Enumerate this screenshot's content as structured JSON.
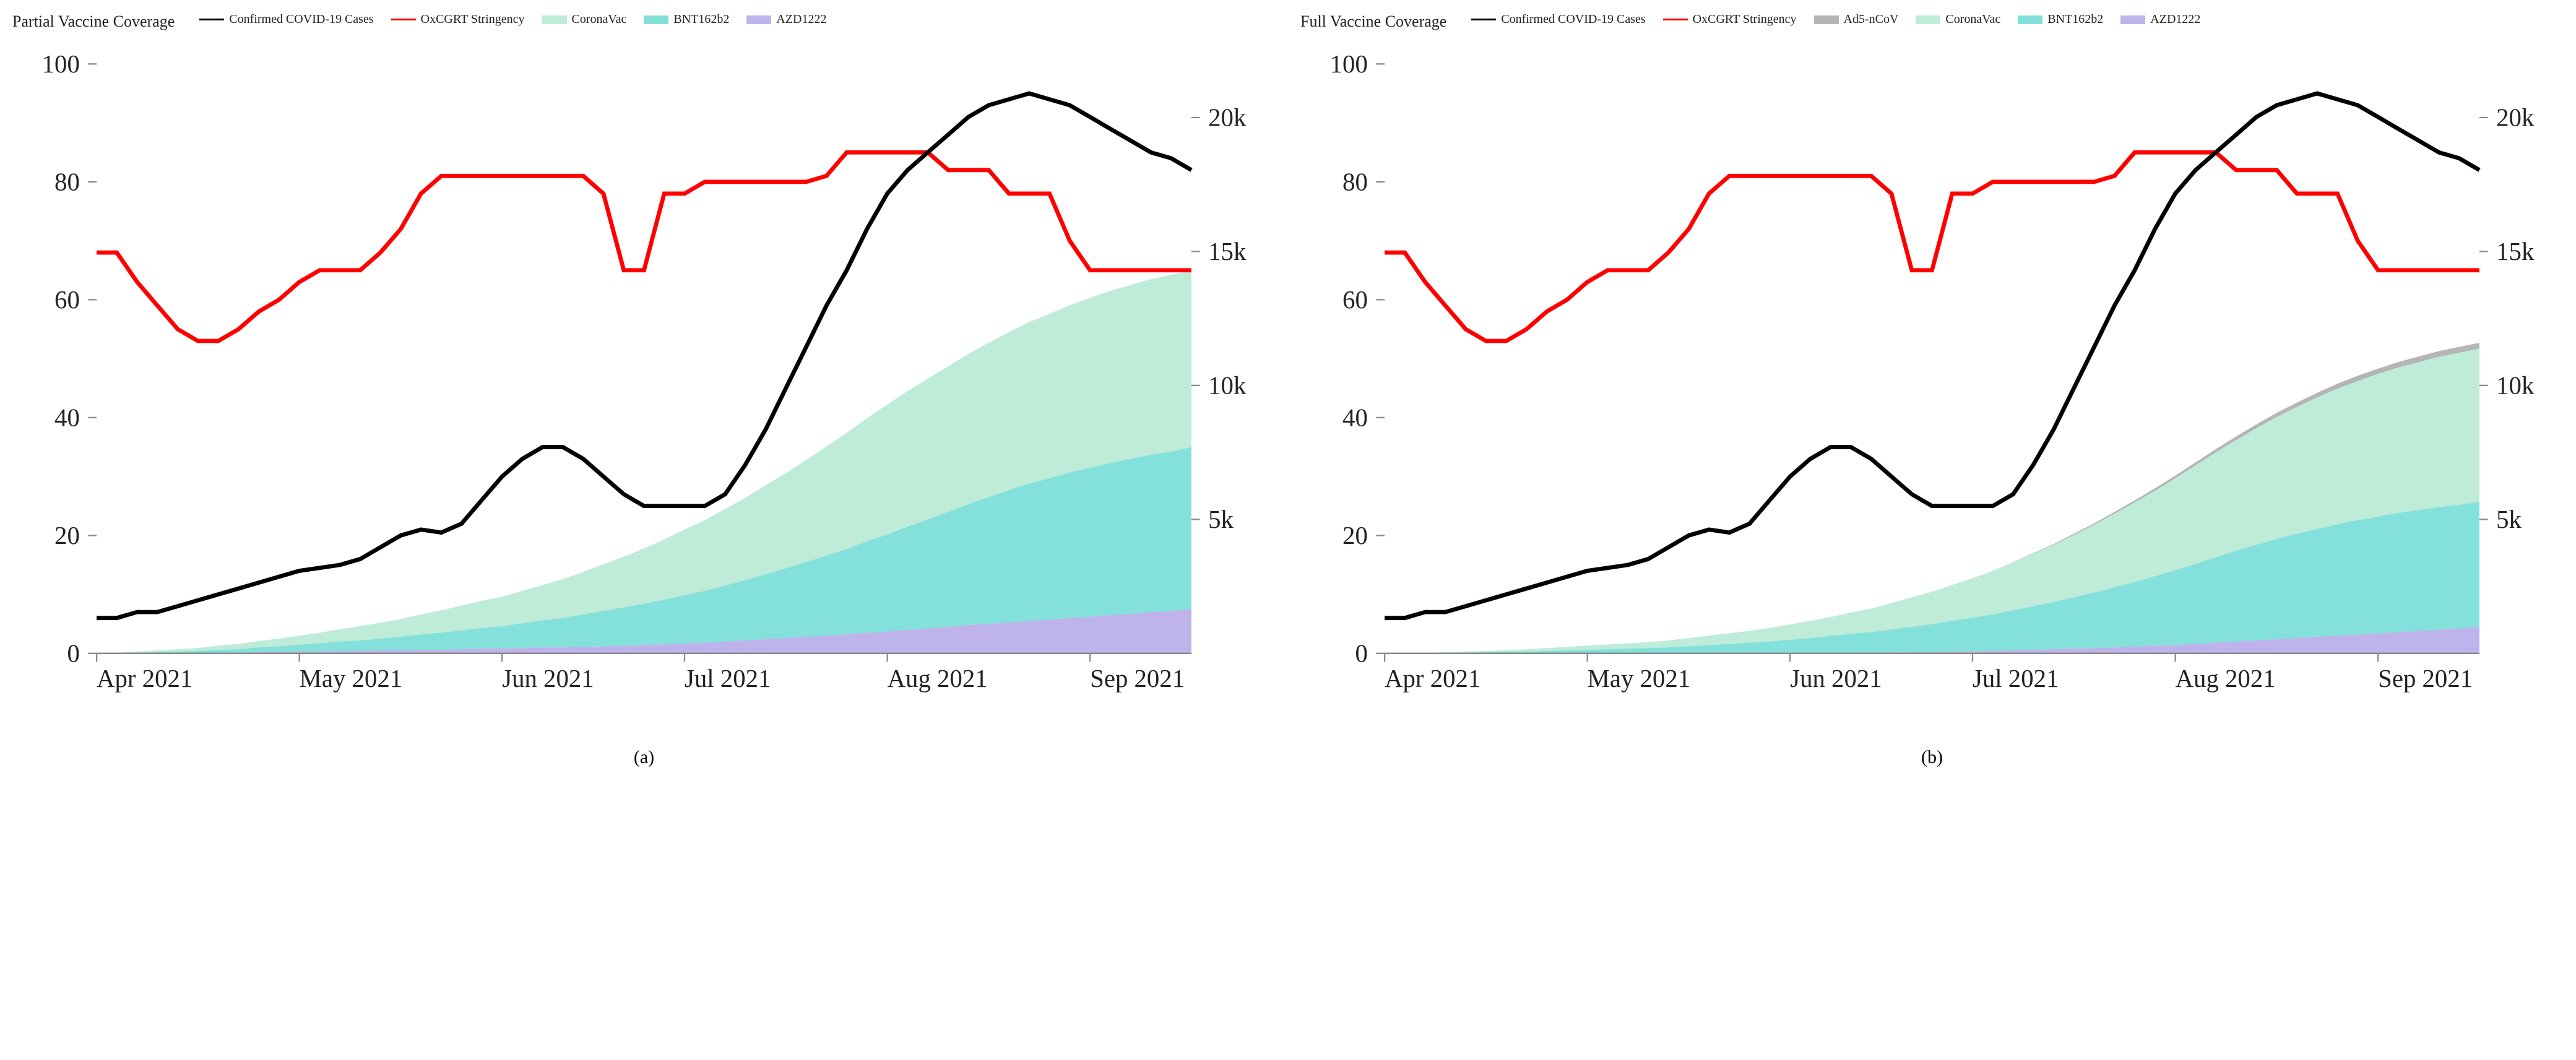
{
  "global": {
    "font_family": "Times New Roman",
    "background_color": "#ffffff",
    "text_color": "#222222",
    "axis_line_color": "#888888",
    "tick_color": "#444444"
  },
  "x_axis": {
    "labels": [
      "Apr 2021",
      "May 2021",
      "Jun 2021",
      "Jul 2021",
      "Aug 2021",
      "Sep 2021"
    ],
    "n_points": 55,
    "label_fontsize": 18
  },
  "left_y_axis": {
    "ticks": [
      0,
      20,
      40,
      60,
      80,
      100
    ],
    "lim": [
      0,
      100
    ],
    "label_fontsize": 18
  },
  "right_y_axis": {
    "ticks": [
      "5k",
      "10k",
      "15k",
      "20k"
    ],
    "tick_values": [
      5000,
      10000,
      15000,
      20000
    ],
    "lim": [
      0,
      22000
    ],
    "label_fontsize": 18
  },
  "series_colors": {
    "covid_cases": "#000000",
    "stringency": "#ff0000",
    "coronavac": "#b4e8d2",
    "bnt162b2": "#6fdbd4",
    "azd1222": "#b3a6e8",
    "ad5_ncov": "#a8a8a8"
  },
  "line_width": {
    "covid_cases": 3,
    "stringency": 3
  },
  "area_opacity": 0.85,
  "covid_cases_data": [
    6,
    6,
    7,
    7,
    8,
    9,
    10,
    11,
    12,
    13,
    14,
    14.5,
    15,
    16,
    18,
    20,
    21,
    20.5,
    22,
    26,
    30,
    33,
    35,
    35,
    33,
    30,
    27,
    25,
    25,
    25,
    25,
    27,
    32,
    38,
    45,
    52,
    59,
    65,
    72,
    78,
    82,
    85,
    88,
    91,
    93,
    94,
    95,
    94,
    93,
    91,
    89,
    87,
    85,
    84,
    82
  ],
  "stringency_data": [
    68,
    68,
    63,
    59,
    55,
    53,
    53,
    55,
    58,
    60,
    63,
    65,
    65,
    65,
    68,
    72,
    78,
    81,
    81,
    81,
    81,
    81,
    81,
    81,
    81,
    78,
    65,
    65,
    78,
    78,
    80,
    80,
    80,
    80,
    80,
    80,
    81,
    85,
    85,
    85,
    85,
    85,
    82,
    82,
    82,
    78,
    78,
    78,
    70,
    65,
    65,
    65,
    65,
    65,
    65
  ],
  "panels": [
    {
      "id": "a",
      "title": "Partial Vaccine Coverage",
      "caption": "(a)",
      "legend": [
        {
          "key": "covid_cases",
          "label": "Confirmed COVID-19 Cases",
          "type": "line"
        },
        {
          "key": "stringency",
          "label": "OxCGRT Stringency",
          "type": "line"
        },
        {
          "key": "coronavac",
          "label": "CoronaVac",
          "type": "area"
        },
        {
          "key": "bnt162b2",
          "label": "BNT162b2",
          "type": "area"
        },
        {
          "key": "azd1222",
          "label": "AZD1222",
          "type": "area"
        }
      ],
      "stacked_areas_order_bottom_to_top": [
        "azd1222",
        "bnt162b2",
        "coronavac"
      ],
      "area_data": {
        "azd1222": [
          0,
          0,
          0,
          0,
          0,
          0,
          0.1,
          0.1,
          0.2,
          0.2,
          0.3,
          0.3,
          0.4,
          0.4,
          0.5,
          0.5,
          0.6,
          0.6,
          0.7,
          0.8,
          0.8,
          0.9,
          1.0,
          1.0,
          1.1,
          1.2,
          1.3,
          1.4,
          1.5,
          1.7,
          1.8,
          2.0,
          2.2,
          2.4,
          2.6,
          2.8,
          3.0,
          3.2,
          3.5,
          3.7,
          4.0,
          4.2,
          4.5,
          4.8,
          5.0,
          5.2,
          5.5,
          5.7,
          6.0,
          6.2,
          6.5,
          6.7,
          7.0,
          7.2,
          7.5
        ],
        "bnt162b2": [
          0,
          0,
          0.1,
          0.2,
          0.3,
          0.4,
          0.5,
          0.6,
          0.8,
          1.0,
          1.2,
          1.4,
          1.6,
          1.8,
          2.0,
          2.3,
          2.6,
          2.9,
          3.2,
          3.5,
          3.8,
          4.2,
          4.6,
          5.0,
          5.5,
          6.0,
          6.5,
          7.0,
          7.6,
          8.2,
          8.8,
          9.5,
          10.2,
          11.0,
          11.8,
          12.7,
          13.6,
          14.5,
          15.5,
          16.5,
          17.5,
          18.5,
          19.5,
          20.5,
          21.5,
          22.5,
          23.3,
          24.0,
          24.7,
          25.3,
          25.8,
          26.3,
          26.7,
          27.0,
          27.5
        ],
        "coronavac": [
          0,
          0.1,
          0.2,
          0.3,
          0.4,
          0.5,
          0.7,
          0.9,
          1.1,
          1.3,
          1.5,
          1.8,
          2.1,
          2.4,
          2.7,
          3.0,
          3.4,
          3.8,
          4.2,
          4.6,
          5.0,
          5.5,
          6.0,
          6.6,
          7.2,
          7.9,
          8.6,
          9.4,
          10.2,
          11.1,
          12.0,
          13.0,
          14.0,
          15.1,
          16.2,
          17.3,
          18.5,
          19.7,
          20.9,
          22.0,
          23.0,
          23.9,
          24.7,
          25.5,
          26.2,
          26.8,
          27.4,
          27.9,
          28.4,
          28.8,
          29.2,
          29.5,
          29.8,
          30.0,
          30.0
        ]
      }
    },
    {
      "id": "b",
      "title": "Full Vaccine Coverage",
      "caption": "(b)",
      "legend": [
        {
          "key": "covid_cases",
          "label": "Confirmed COVID-19 Cases",
          "type": "line"
        },
        {
          "key": "stringency",
          "label": "OxCGRT Stringency",
          "type": "line"
        },
        {
          "key": "ad5_ncov",
          "label": "Ad5-nCoV",
          "type": "area"
        },
        {
          "key": "coronavac",
          "label": "CoronaVac",
          "type": "area"
        },
        {
          "key": "bnt162b2",
          "label": "BNT162b2",
          "type": "area"
        },
        {
          "key": "azd1222",
          "label": "AZD1222",
          "type": "area"
        }
      ],
      "stacked_areas_order_bottom_to_top": [
        "azd1222",
        "bnt162b2",
        "coronavac",
        "ad5_ncov"
      ],
      "area_data": {
        "azd1222": [
          0,
          0,
          0,
          0,
          0,
          0,
          0,
          0,
          0,
          0,
          0,
          0,
          0,
          0,
          0,
          0,
          0,
          0,
          0,
          0,
          0,
          0,
          0.05,
          0.1,
          0.1,
          0.15,
          0.2,
          0.25,
          0.3,
          0.35,
          0.4,
          0.5,
          0.6,
          0.7,
          0.8,
          0.9,
          1.0,
          1.1,
          1.3,
          1.4,
          1.6,
          1.8,
          2.0,
          2.2,
          2.4,
          2.6,
          2.8,
          3.0,
          3.2,
          3.4,
          3.6,
          3.8,
          4.0,
          4.2,
          4.5
        ],
        "bnt162b2": [
          0,
          0,
          0.05,
          0.1,
          0.15,
          0.2,
          0.25,
          0.3,
          0.4,
          0.5,
          0.6,
          0.7,
          0.8,
          0.9,
          1.0,
          1.2,
          1.4,
          1.6,
          1.8,
          2.0,
          2.3,
          2.6,
          2.9,
          3.2,
          3.5,
          3.9,
          4.3,
          4.7,
          5.2,
          5.7,
          6.2,
          6.8,
          7.4,
          8.0,
          8.7,
          9.4,
          10.2,
          11.0,
          11.8,
          12.7,
          13.6,
          14.5,
          15.4,
          16.2,
          17.0,
          17.7,
          18.3,
          18.9,
          19.4,
          19.8,
          20.2,
          20.5,
          20.8,
          21.0,
          21.2
        ],
        "coronavac": [
          0,
          0,
          0.05,
          0.1,
          0.15,
          0.2,
          0.3,
          0.4,
          0.5,
          0.6,
          0.7,
          0.8,
          0.9,
          1.0,
          1.2,
          1.4,
          1.6,
          1.8,
          2.0,
          2.3,
          2.6,
          2.9,
          3.2,
          3.6,
          4.0,
          4.5,
          5.0,
          5.5,
          6.1,
          6.7,
          7.4,
          8.1,
          8.9,
          9.7,
          10.6,
          11.5,
          12.5,
          13.5,
          14.5,
          15.6,
          16.7,
          17.8,
          18.8,
          19.8,
          20.7,
          21.5,
          22.3,
          23.0,
          23.6,
          24.2,
          24.7,
          25.1,
          25.5,
          25.8,
          26.0
        ],
        "ad5_ncov": [
          0,
          0,
          0,
          0,
          0,
          0,
          0,
          0,
          0,
          0,
          0,
          0,
          0,
          0,
          0,
          0,
          0,
          0,
          0,
          0,
          0,
          0,
          0,
          0,
          0,
          0,
          0,
          0,
          0,
          0,
          0,
          0.05,
          0.1,
          0.15,
          0.2,
          0.25,
          0.3,
          0.35,
          0.4,
          0.45,
          0.5,
          0.55,
          0.6,
          0.65,
          0.7,
          0.75,
          0.8,
          0.85,
          0.9,
          0.92,
          0.94,
          0.96,
          0.98,
          0.99,
          1.0
        ]
      }
    }
  ]
}
